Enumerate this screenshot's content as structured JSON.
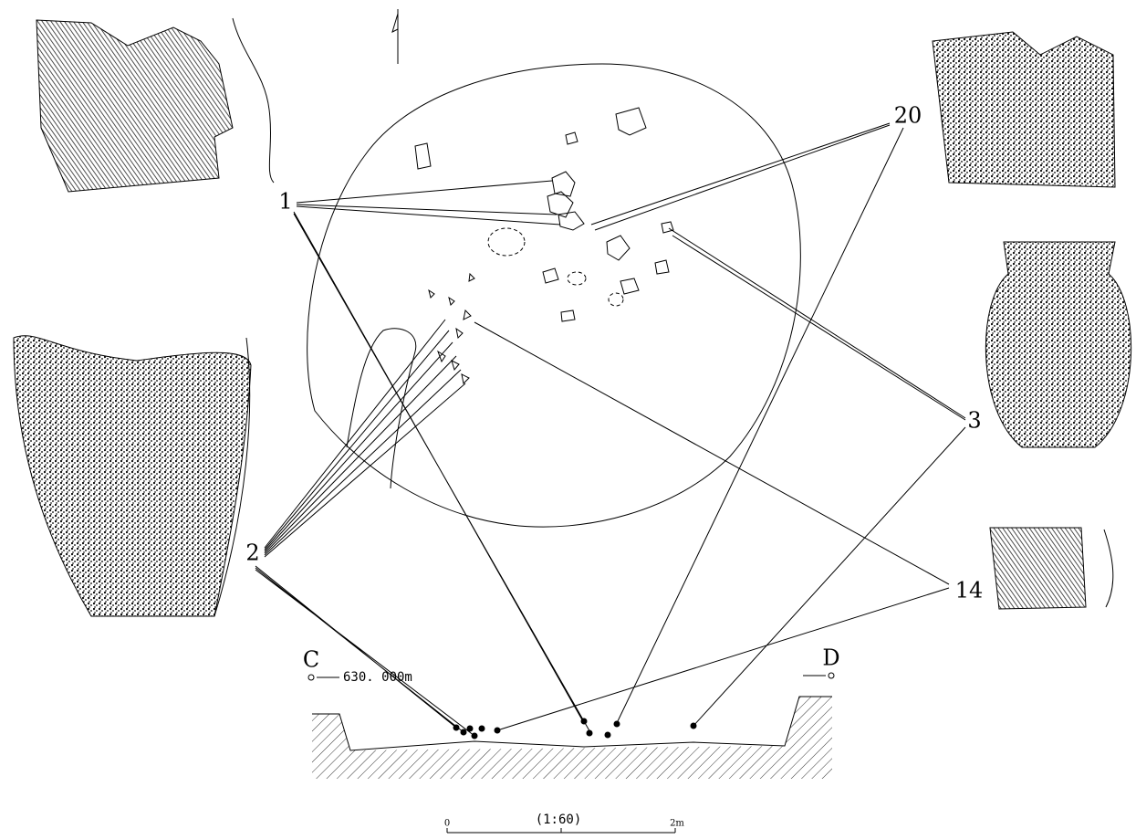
{
  "artifact_labels": [
    "1",
    "2",
    "3",
    "14",
    "20"
  ],
  "section": {
    "left_point": "C",
    "right_point": "D",
    "elevation": "630. 000m"
  },
  "scale": {
    "ratio": "(1:60)",
    "start": "0",
    "end": "2m"
  }
}
